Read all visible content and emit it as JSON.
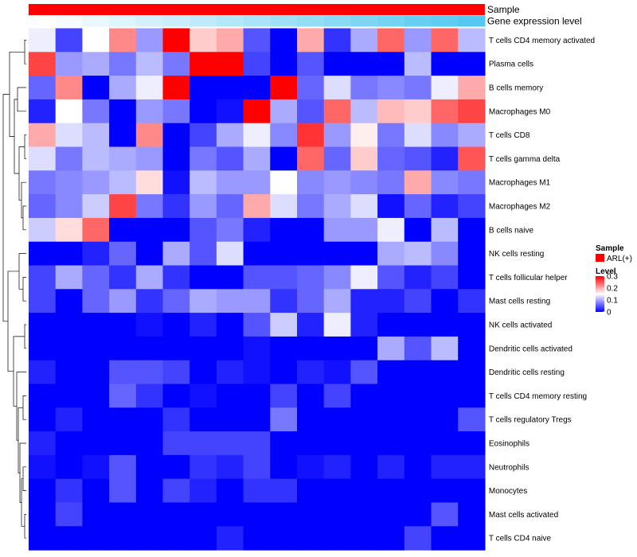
{
  "chart_data": {
    "type": "heatmap",
    "annotation_labels": {
      "sample": "Sample",
      "gene_expression": "Gene expression level"
    },
    "rows": [
      "T cells CD4 memory activated",
      "Plasma cells",
      "B cells memory",
      "Macrophages M0",
      "T cells CD8",
      "T cells gamma delta",
      "Macrophages M1",
      "Macrophages M2",
      "B cells naive",
      "NK cells resting",
      "T cells follicular helper",
      "Mast cells resting",
      "NK cells activated",
      "Dendritic cells activated",
      "Dendritic cells resting",
      "T cells CD4 memory resting",
      "T cells regulatory  Tregs",
      "Eosinophils",
      "Neutrophils",
      "Monocytes",
      "Mast cells activated",
      "T cells CD4 naive"
    ],
    "n_columns": 17,
    "values": [
      [
        0.14,
        0.04,
        0.15,
        0.22,
        0.09,
        0.3,
        0.18,
        0.2,
        0.05,
        0.0,
        0.2,
        0.03,
        0.1,
        0.24,
        0.09,
        0.24,
        0.11
      ],
      [
        0.26,
        0.09,
        0.1,
        0.07,
        0.11,
        0.07,
        0.3,
        0.3,
        0.04,
        0.0,
        0.05,
        0.0,
        0.0,
        0.0,
        0.11,
        0.0,
        0.0
      ],
      [
        0.06,
        0.22,
        0.0,
        0.1,
        0.14,
        0.3,
        0.0,
        0.0,
        0.0,
        0.3,
        0.06,
        0.13,
        0.07,
        0.08,
        0.07,
        0.14,
        0.2
      ],
      [
        0.02,
        0.15,
        0.07,
        0.0,
        0.09,
        0.07,
        0.0,
        0.01,
        0.3,
        0.1,
        0.05,
        0.24,
        0.11,
        0.19,
        0.18,
        0.24,
        0.26
      ],
      [
        0.2,
        0.13,
        0.11,
        0.0,
        0.22,
        0.0,
        0.04,
        0.1,
        0.14,
        0.08,
        0.27,
        0.09,
        0.16,
        0.07,
        0.13,
        0.08,
        0.1
      ],
      [
        0.13,
        0.07,
        0.11,
        0.1,
        0.09,
        0.0,
        0.07,
        0.05,
        0.1,
        0.0,
        0.24,
        0.06,
        0.18,
        0.06,
        0.05,
        0.02,
        0.25
      ],
      [
        0.07,
        0.08,
        0.09,
        0.11,
        0.17,
        0.01,
        0.11,
        0.09,
        0.09,
        0.15,
        0.08,
        0.09,
        0.08,
        0.07,
        0.2,
        0.08,
        0.07
      ],
      [
        0.06,
        0.08,
        0.12,
        0.26,
        0.07,
        0.03,
        0.09,
        0.06,
        0.2,
        0.13,
        0.07,
        0.1,
        0.13,
        0.01,
        0.06,
        0.02,
        0.04
      ],
      [
        0.12,
        0.17,
        0.24,
        0.0,
        0.0,
        0.0,
        0.05,
        0.07,
        0.02,
        0.0,
        0.0,
        0.09,
        0.09,
        0.14,
        0.0,
        0.11,
        0.0
      ],
      [
        0.0,
        0.0,
        0.02,
        0.06,
        0.0,
        0.1,
        0.05,
        0.13,
        0.0,
        0.0,
        0.0,
        0.0,
        0.0,
        0.1,
        0.11,
        0.08,
        0.0
      ],
      [
        0.04,
        0.1,
        0.06,
        0.03,
        0.1,
        0.03,
        0.0,
        0.0,
        0.05,
        0.05,
        0.06,
        0.08,
        0.14,
        0.05,
        0.02,
        0.04,
        0.0
      ],
      [
        0.04,
        0.0,
        0.06,
        0.09,
        0.03,
        0.06,
        0.1,
        0.09,
        0.09,
        0.03,
        0.06,
        0.1,
        0.02,
        0.02,
        0.04,
        0.0,
        0.03
      ],
      [
        0.0,
        0.0,
        0.0,
        0.0,
        0.01,
        0.0,
        0.02,
        0.0,
        0.05,
        0.12,
        0.02,
        0.14,
        0.02,
        0.0,
        0.0,
        0.0,
        0.0
      ],
      [
        0.0,
        0.0,
        0.0,
        0.0,
        0.0,
        0.0,
        0.0,
        0.0,
        0.01,
        0.0,
        0.0,
        0.0,
        0.0,
        0.1,
        0.05,
        0.11,
        0.0
      ],
      [
        0.02,
        0.0,
        0.0,
        0.05,
        0.05,
        0.04,
        0.0,
        0.02,
        0.01,
        0.0,
        0.02,
        0.01,
        0.05,
        0.0,
        0.0,
        0.0,
        0.0
      ],
      [
        0.0,
        0.0,
        0.0,
        0.06,
        0.03,
        0.0,
        0.01,
        0.0,
        0.0,
        0.04,
        0.0,
        0.04,
        0.0,
        0.0,
        0.0,
        0.0,
        0.0
      ],
      [
        0.0,
        0.02,
        0.0,
        0.0,
        0.0,
        0.03,
        0.0,
        0.0,
        0.0,
        0.07,
        0.0,
        0.0,
        0.0,
        0.0,
        0.0,
        0.0,
        0.05
      ],
      [
        0.02,
        0.0,
        0.0,
        0.0,
        0.0,
        0.04,
        0.04,
        0.04,
        0.04,
        0.0,
        0.0,
        0.0,
        0.0,
        0.0,
        0.0,
        0.0,
        0.0
      ],
      [
        0.01,
        0.0,
        0.01,
        0.05,
        0.0,
        0.0,
        0.03,
        0.02,
        0.04,
        0.0,
        0.01,
        0.02,
        0.0,
        0.02,
        0.0,
        0.02,
        0.02
      ],
      [
        0.0,
        0.03,
        0.0,
        0.05,
        0.0,
        0.04,
        0.02,
        0.0,
        0.03,
        0.03,
        0.0,
        0.0,
        0.0,
        0.0,
        0.0,
        0.0,
        0.0
      ],
      [
        0.0,
        0.04,
        0.0,
        0.0,
        0.0,
        0.0,
        0.0,
        0.0,
        0.0,
        0.0,
        0.0,
        0.0,
        0.0,
        0.0,
        0.0,
        0.05,
        0.0
      ],
      [
        0.0,
        0.0,
        0.0,
        0.0,
        0.0,
        0.0,
        0.0,
        0.02,
        0.0,
        0.0,
        0.0,
        0.0,
        0.0,
        0.0,
        0.04,
        0.0,
        0.0
      ]
    ],
    "gene_expression_level": [
      0.0,
      0.06,
      0.12,
      0.18,
      0.24,
      0.3,
      0.36,
      0.42,
      0.48,
      0.54,
      0.6,
      0.66,
      0.72,
      0.78,
      0.84,
      0.9,
      0.96
    ],
    "color_scale": {
      "min": 0,
      "mid": 0.15,
      "max": 0.3,
      "low": "#0000ff",
      "midColor": "#ffffff",
      "high": "#ff0000"
    },
    "annotation_colors": {
      "sample": "#ff0000",
      "expr_low": "#ffffff",
      "expr_high": "#4dc6f0"
    },
    "legend": {
      "sample_title": "Sample",
      "sample_entry": "ARL(+)",
      "level_title": "Level",
      "level_ticks": [
        0.3,
        0.2,
        0.1,
        0
      ],
      "level_tick_labels": [
        "0.3",
        "0.2",
        "0.1",
        "0"
      ],
      "position": "right"
    }
  }
}
